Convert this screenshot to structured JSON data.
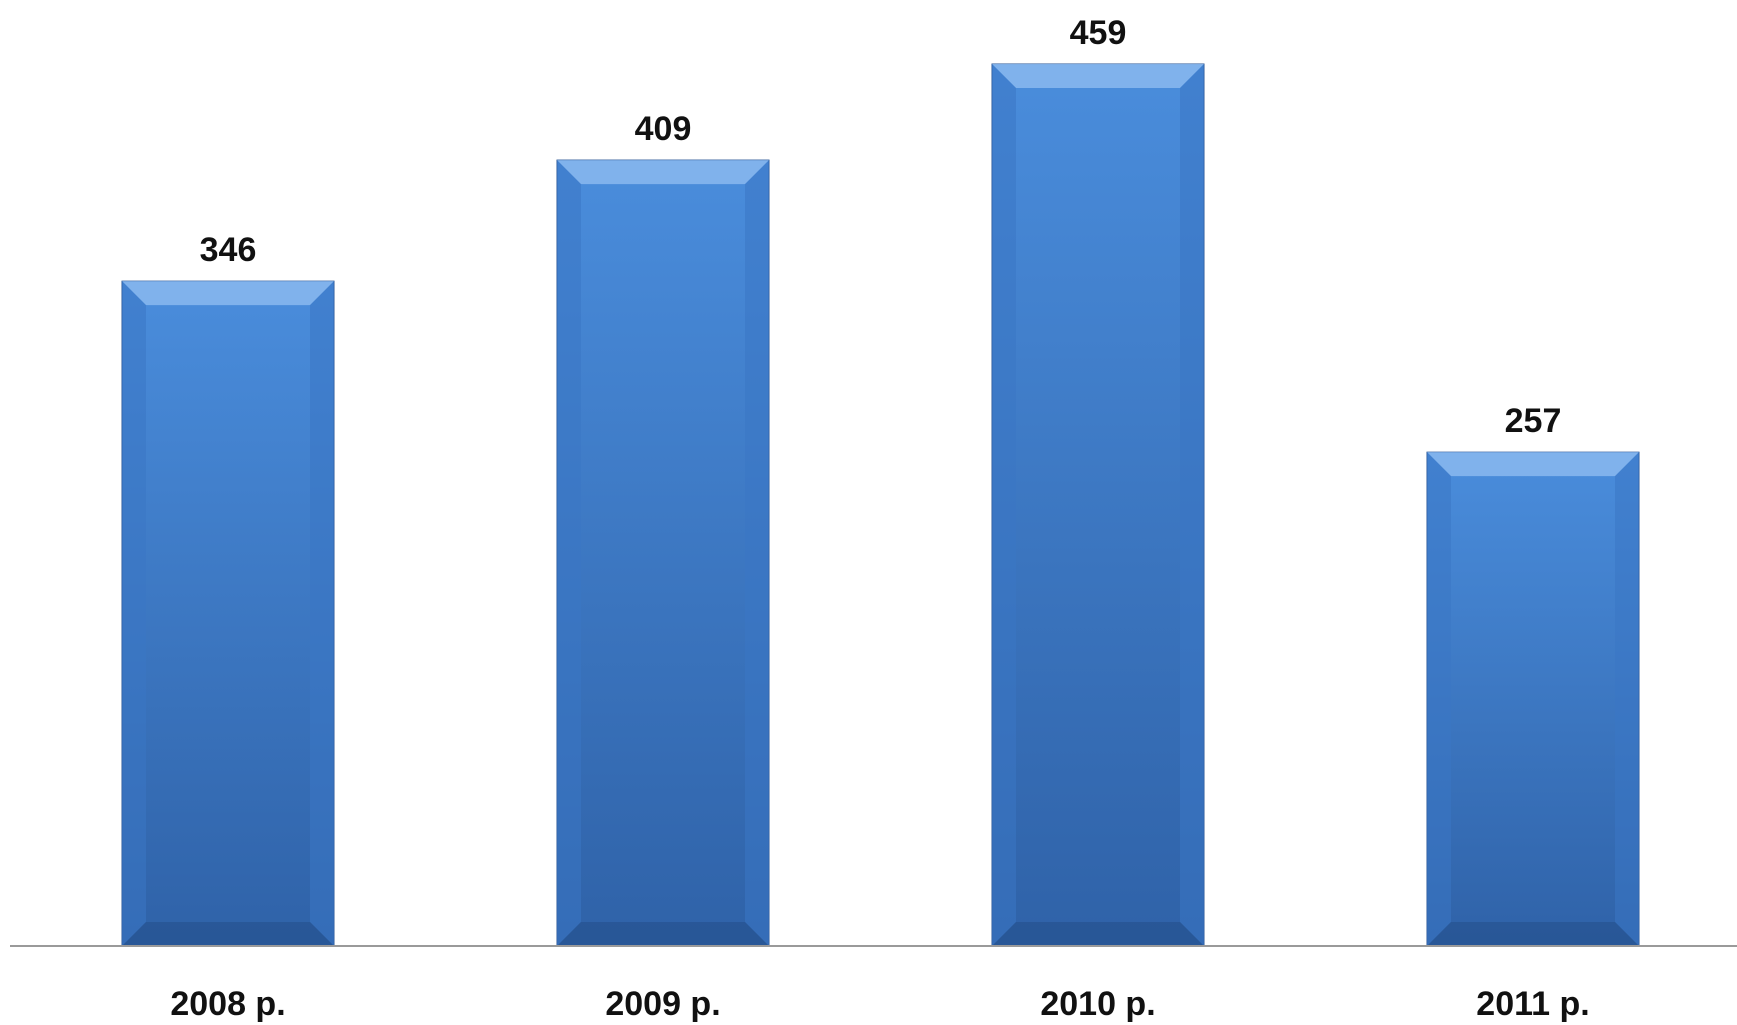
{
  "chart_data": {
    "type": "bar",
    "categories": [
      "2008 р.",
      "2009 р.",
      "2010 р.",
      "2011 р."
    ],
    "values": [
      346,
      409,
      459,
      257
    ],
    "data_labels": [
      "346",
      "409",
      "459",
      "257"
    ],
    "ylim": [
      0,
      459
    ],
    "grid": false,
    "legend": "none",
    "colors": {
      "bar_light": "#4a8ddc",
      "bar_dark": "#2f62a8",
      "bevel_top": "#8ab9ef",
      "bevel_side": "#3b76c4",
      "bevel_bottom": "#24508c",
      "axis": "#9a9a9a"
    }
  }
}
